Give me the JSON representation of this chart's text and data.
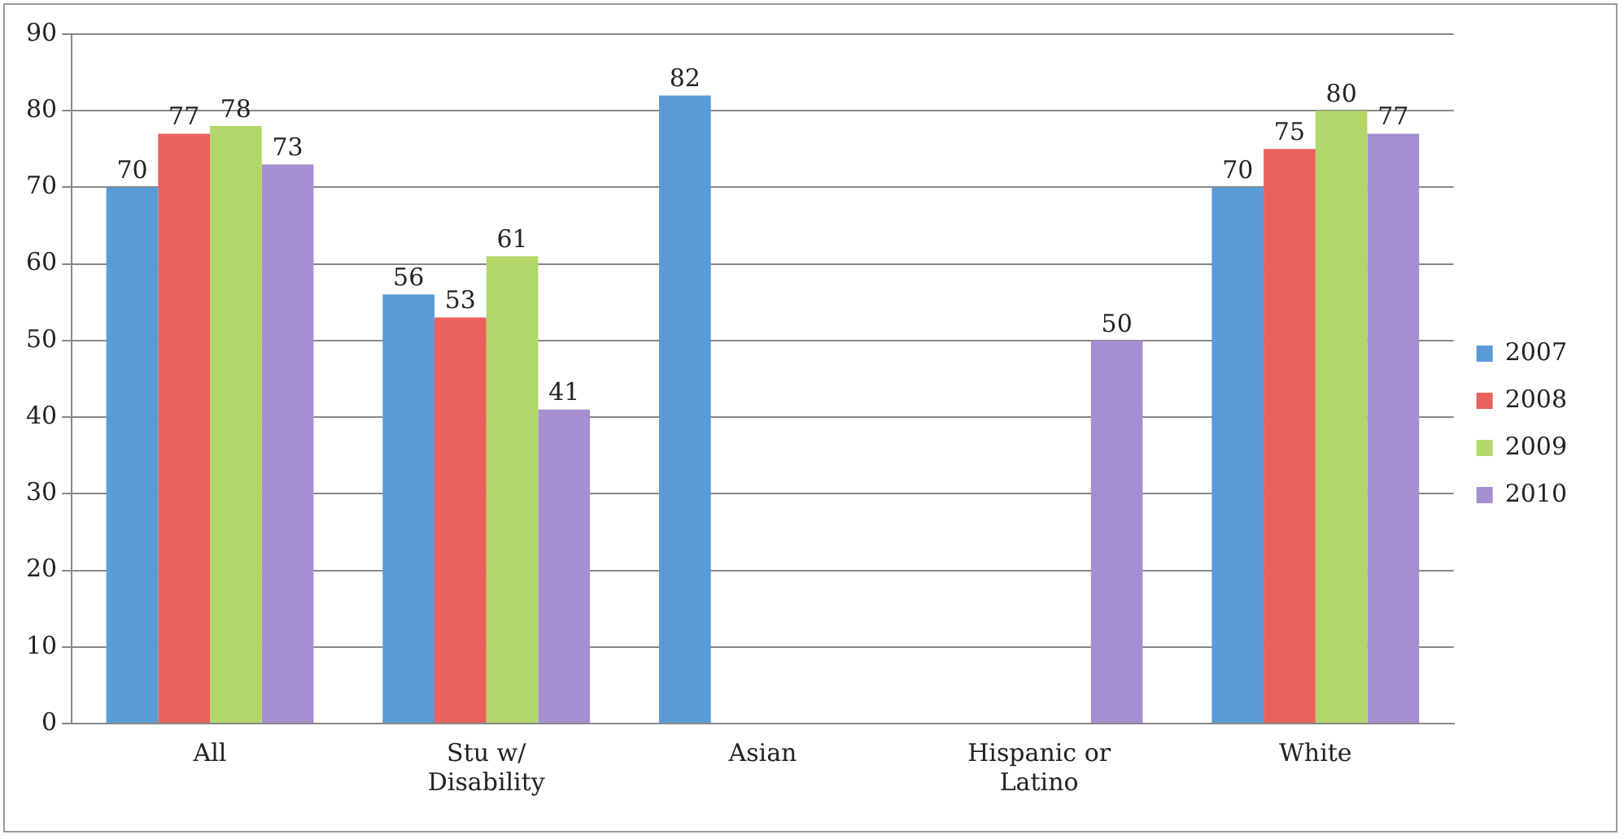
{
  "chart_data": {
    "type": "bar",
    "categories": [
      "All",
      "Stu w/ Disability",
      "Asian",
      "Hispanic or Latino",
      "White"
    ],
    "series": [
      {
        "name": "2007",
        "color": "#5b9bd5",
        "values": [
          70,
          56,
          82,
          null,
          70
        ]
      },
      {
        "name": "2008",
        "color": "#e8625c",
        "values": [
          77,
          53,
          null,
          null,
          75
        ]
      },
      {
        "name": "2009",
        "color": "#b3d66b",
        "values": [
          78,
          61,
          null,
          null,
          80
        ]
      },
      {
        "name": "2010",
        "color": "#a68fd0",
        "values": [
          73,
          41,
          null,
          50,
          77
        ]
      }
    ],
    "ylim": [
      0,
      90
    ],
    "yticks": [
      0,
      10,
      20,
      30,
      40,
      50,
      60,
      70,
      80,
      90
    ],
    "grid": "y",
    "legend": "right",
    "data_labels": true
  }
}
